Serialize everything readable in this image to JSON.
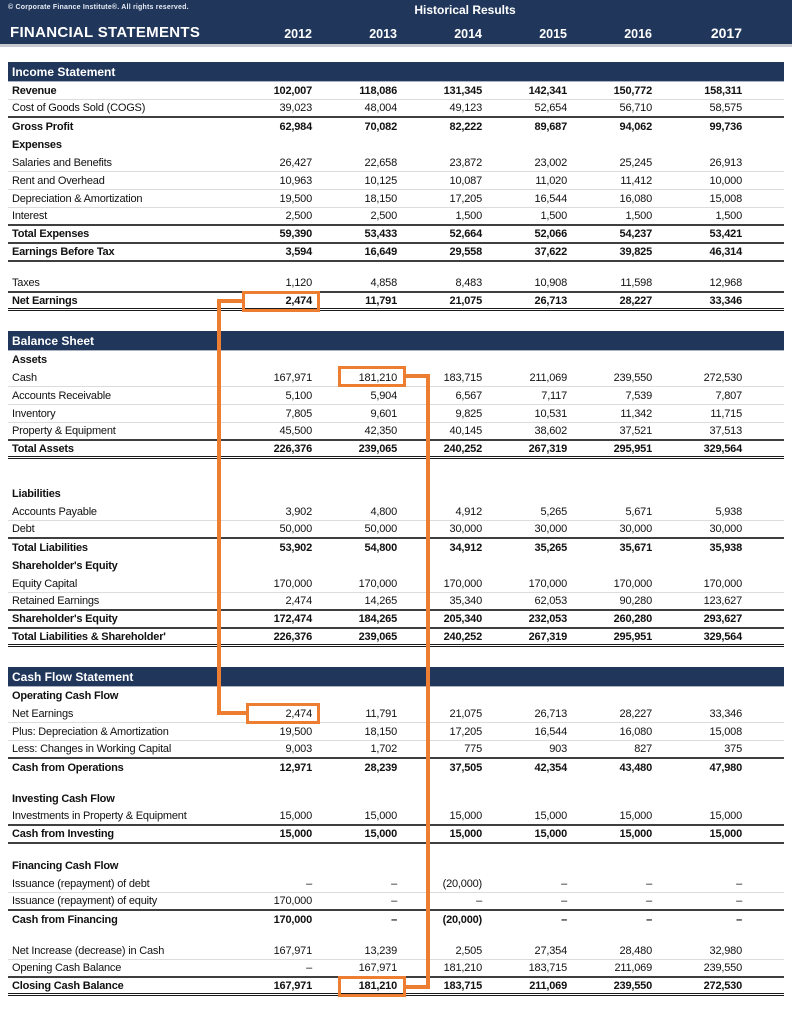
{
  "header": {
    "copyright": "© Corporate Finance Institute®. All rights reserved.",
    "group_title": "Historical Results",
    "title": "FINANCIAL STATEMENTS",
    "years": [
      "2012",
      "2013",
      "2014",
      "2015",
      "2016",
      "2017"
    ]
  },
  "colors": {
    "navy": "#20375B",
    "highlight_orange": "#ED7D31"
  },
  "sections": [
    {
      "title": "Income Statement",
      "rows": [
        {
          "label": "Revenue",
          "bold": true,
          "border": "light",
          "values": [
            "102,007",
            "118,086",
            "131,345",
            "142,341",
            "150,772",
            "158,311"
          ]
        },
        {
          "label": "Cost of Goods Sold (COGS)",
          "border": "dark",
          "values": [
            "39,023",
            "48,004",
            "49,123",
            "52,654",
            "56,710",
            "58,575"
          ]
        },
        {
          "label": "Gross Profit",
          "bold": true,
          "border": "none",
          "values": [
            "62,984",
            "70,082",
            "82,222",
            "89,687",
            "94,062",
            "99,736"
          ]
        },
        {
          "label": "Expenses",
          "type": "header",
          "bold": true,
          "border": "none"
        },
        {
          "label": "Salaries and Benefits",
          "border": "light",
          "values": [
            "26,427",
            "22,658",
            "23,872",
            "23,002",
            "25,245",
            "26,913"
          ]
        },
        {
          "label": "Rent and Overhead",
          "border": "light",
          "values": [
            "10,963",
            "10,125",
            "10,087",
            "11,020",
            "11,412",
            "10,000"
          ]
        },
        {
          "label": "Depreciation & Amortization",
          "border": "light",
          "values": [
            "19,500",
            "18,150",
            "17,205",
            "16,544",
            "16,080",
            "15,008"
          ]
        },
        {
          "label": "Interest",
          "border": "dark",
          "values": [
            "2,500",
            "2,500",
            "1,500",
            "1,500",
            "1,500",
            "1,500"
          ]
        },
        {
          "label": "Total Expenses",
          "bold": true,
          "border": "dark",
          "values": [
            "59,390",
            "53,433",
            "52,664",
            "52,066",
            "54,237",
            "53,421"
          ]
        },
        {
          "label": "Earnings Before Tax",
          "bold": true,
          "border": "dark",
          "values": [
            "3,594",
            "16,649",
            "29,558",
            "37,622",
            "39,825",
            "46,314"
          ]
        },
        {
          "type": "blank",
          "h": 13
        },
        {
          "label": "Taxes",
          "border": "dark",
          "values": [
            "1,120",
            "4,858",
            "8,483",
            "10,908",
            "11,598",
            "12,968"
          ]
        },
        {
          "label": "Net Earnings",
          "bold": true,
          "border": "double",
          "values": [
            "2,474",
            "11,791",
            "21,075",
            "26,713",
            "28,227",
            "33,346"
          ]
        }
      ]
    },
    {
      "title": "Balance Sheet",
      "rows": [
        {
          "label": "Assets",
          "type": "header",
          "bold": true,
          "border": "none"
        },
        {
          "label": "Cash",
          "border": "light",
          "values": [
            "167,971",
            "181,210",
            "183,715",
            "211,069",
            "239,550",
            "272,530"
          ]
        },
        {
          "label": "Accounts Receivable",
          "border": "light",
          "values": [
            "5,100",
            "5,904",
            "6,567",
            "7,117",
            "7,539",
            "7,807"
          ]
        },
        {
          "label": "Inventory",
          "border": "light",
          "values": [
            "7,805",
            "9,601",
            "9,825",
            "10,531",
            "11,342",
            "11,715"
          ]
        },
        {
          "label": "Property & Equipment",
          "border": "dark",
          "values": [
            "45,500",
            "42,350",
            "40,145",
            "38,602",
            "37,521",
            "37,513"
          ]
        },
        {
          "label": "Total Assets",
          "bold": true,
          "border": "double",
          "values": [
            "226,376",
            "239,065",
            "240,252",
            "267,319",
            "295,951",
            "329,564"
          ]
        },
        {
          "type": "blank",
          "h": 26
        },
        {
          "label": "Liabilities",
          "type": "header",
          "bold": true,
          "border": "none"
        },
        {
          "label": "Accounts Payable",
          "border": "light",
          "values": [
            "3,902",
            "4,800",
            "4,912",
            "5,265",
            "5,671",
            "5,938"
          ]
        },
        {
          "label": "Debt",
          "border": "dark",
          "values": [
            "50,000",
            "50,000",
            "30,000",
            "30,000",
            "30,000",
            "30,000"
          ]
        },
        {
          "label": "Total Liabilities",
          "bold": true,
          "border": "none",
          "values": [
            "53,902",
            "54,800",
            "34,912",
            "35,265",
            "35,671",
            "35,938"
          ]
        },
        {
          "label": "Shareholder's Equity",
          "type": "header",
          "bold": true,
          "border": "none"
        },
        {
          "label": "Equity Capital",
          "border": "light",
          "values": [
            "170,000",
            "170,000",
            "170,000",
            "170,000",
            "170,000",
            "170,000"
          ]
        },
        {
          "label": "Retained Earnings",
          "border": "dark",
          "values": [
            "2,474",
            "14,265",
            "35,340",
            "62,053",
            "90,280",
            "123,627"
          ]
        },
        {
          "label": "Shareholder's Equity",
          "bold": true,
          "border": "dark",
          "values": [
            "172,474",
            "184,265",
            "205,340",
            "232,053",
            "260,280",
            "293,627"
          ]
        },
        {
          "label": "Total Liabilities & Shareholder'",
          "bold": true,
          "border": "double",
          "values": [
            "226,376",
            "239,065",
            "240,252",
            "267,319",
            "295,951",
            "329,564"
          ]
        }
      ]
    },
    {
      "title": "Cash Flow Statement",
      "rows": [
        {
          "label": "Operating Cash Flow",
          "type": "header",
          "bold": true,
          "border": "none"
        },
        {
          "label": "Net Earnings",
          "border": "light",
          "values": [
            "2,474",
            "11,791",
            "21,075",
            "26,713",
            "28,227",
            "33,346"
          ]
        },
        {
          "label": "Plus: Depreciation & Amortization",
          "border": "light",
          "values": [
            "19,500",
            "18,150",
            "17,205",
            "16,544",
            "16,080",
            "15,008"
          ]
        },
        {
          "label": "Less: Changes in Working Capital",
          "border": "dark",
          "values": [
            "9,003",
            "1,702",
            "775",
            "903",
            "827",
            "375"
          ]
        },
        {
          "label": "Cash from Operations",
          "bold": true,
          "border": "none",
          "values": [
            "12,971",
            "28,239",
            "37,505",
            "42,354",
            "43,480",
            "47,980"
          ]
        },
        {
          "type": "blank",
          "h": 13
        },
        {
          "label": "Investing Cash Flow",
          "type": "header",
          "bold": true,
          "border": "none"
        },
        {
          "label": "Investments in Property & Equipment",
          "border": "dark",
          "values": [
            "15,000",
            "15,000",
            "15,000",
            "15,000",
            "15,000",
            "15,000"
          ]
        },
        {
          "label": "Cash from Investing",
          "bold": true,
          "border": "dark",
          "values": [
            "15,000",
            "15,000",
            "15,000",
            "15,000",
            "15,000",
            "15,000"
          ]
        },
        {
          "type": "blank",
          "h": 13
        },
        {
          "label": "Financing Cash Flow",
          "type": "header",
          "bold": true,
          "border": "none"
        },
        {
          "label": "Issuance (repayment) of debt",
          "border": "light",
          "values": [
            "–",
            "–",
            "(20,000)",
            "–",
            "–",
            "–"
          ]
        },
        {
          "label": "Issuance (repayment) of equity",
          "border": "dark",
          "values": [
            "170,000",
            "–",
            "–",
            "–",
            "–",
            "–"
          ]
        },
        {
          "label": "Cash from Financing",
          "bold": true,
          "border": "none",
          "values": [
            "170,000",
            "–",
            "(20,000)",
            "–",
            "–",
            "–"
          ]
        },
        {
          "type": "blank",
          "h": 13
        },
        {
          "label": "Net Increase (decrease) in Cash",
          "border": "light",
          "values": [
            "167,971",
            "13,239",
            "2,505",
            "27,354",
            "28,480",
            "32,980"
          ]
        },
        {
          "label": "Opening Cash Balance",
          "border": "dark",
          "values": [
            "–",
            "167,971",
            "181,210",
            "183,715",
            "211,069",
            "239,550"
          ]
        },
        {
          "label": "Closing Cash Balance",
          "bold": true,
          "border": "double",
          "values": [
            "167,971",
            "181,210",
            "183,715",
            "211,069",
            "239,550",
            "272,530"
          ]
        }
      ]
    }
  ],
  "annotations": {
    "highlighted_cells": [
      {
        "section": "Income Statement",
        "row": "Net Earnings",
        "year": "2012",
        "value": "2,474"
      },
      {
        "section": "Balance Sheet",
        "row": "Cash",
        "year": "2013",
        "value": "181,210"
      },
      {
        "section": "Cash Flow Statement",
        "row": "Net Earnings",
        "year": "2012",
        "value": "2,474"
      },
      {
        "section": "Cash Flow Statement",
        "row": "Closing Cash Balance",
        "year": "2013",
        "value": "181,210"
      }
    ]
  }
}
